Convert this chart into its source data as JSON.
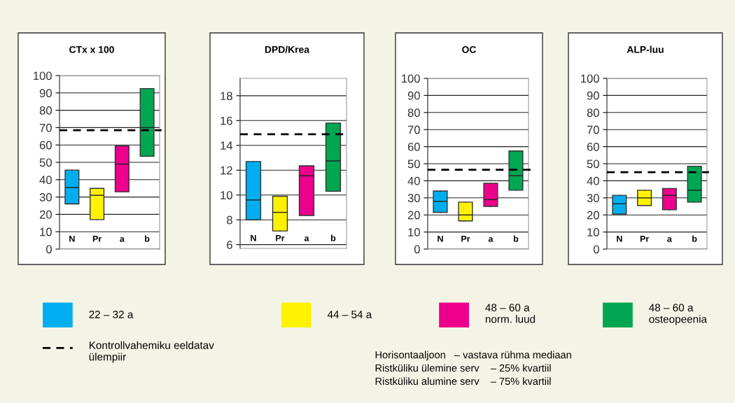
{
  "chart_data": [
    {
      "type": "box",
      "title": "CTx x 100",
      "categories": [
        "N",
        "Pr",
        "a",
        "b"
      ],
      "ylim": [
        0,
        100
      ],
      "yticks": [
        0,
        10,
        20,
        30,
        40,
        50,
        60,
        70,
        80,
        90,
        100
      ],
      "grid": "y",
      "legend": "bottom",
      "series": [
        {
          "name": "22 – 32 a",
          "color": "#00aeef",
          "boxes": [
            {
              "low": 26,
              "q1": 26,
              "median": 35.5,
              "q3": 45.5,
              "high": 45.5
            },
            null,
            null,
            null
          ]
        },
        {
          "name": "44 – 54 a",
          "color": "#fff200",
          "boxes": [
            null,
            {
              "low": 17,
              "q1": 17,
              "median": 31,
              "q3": 35,
              "high": 35
            },
            null,
            null
          ]
        },
        {
          "name": "48 – 60 a\nnorm. luud",
          "color": "#ec008c",
          "boxes": [
            null,
            null,
            {
              "low": 33,
              "q1": 33,
              "median": 49,
              "q3": 59.5,
              "high": 59.5
            },
            null
          ]
        },
        {
          "name": "48 – 60 a\nosteopeenia",
          "color": "#00a651",
          "boxes": [
            null,
            null,
            null,
            {
              "low": 53.5,
              "q1": 53.5,
              "median": 70,
              "q3": 92.5,
              "high": 92.5
            }
          ]
        }
      ],
      "ref_lines": [
        {
          "axis": "y",
          "value": 68.5,
          "label": "Kontrollvahemiku eeldatav\nülempiir",
          "color": "#000000",
          "line_style": "dashed"
        }
      ],
      "annotations": [
        "Horisontaaljoon   – vastava rühma mediaan\nRistküliku ülemine serv    – 25% kvartiil\nRistküliku alumine serv    – 75% kvartiil"
      ]
    },
    {
      "type": "box",
      "title": "DPD/Krea",
      "categories": [
        "N",
        "Pr",
        "a",
        "b"
      ],
      "ylim": [
        5.7,
        19.4
      ],
      "yticks": [
        6,
        8,
        10,
        12,
        14,
        16,
        18
      ],
      "grid": "y",
      "series": [
        {
          "color": "#00aeef",
          "boxes": [
            {
              "low": 8,
              "q1": 8,
              "median": 9.6,
              "q3": 12.7,
              "high": 12.7
            },
            null,
            null,
            null
          ]
        },
        {
          "color": "#fff200",
          "boxes": [
            null,
            {
              "low": 7.1,
              "q1": 7.1,
              "median": 8.6,
              "q3": 9.9,
              "high": 9.9
            },
            null,
            null
          ]
        },
        {
          "color": "#ec008c",
          "boxes": [
            null,
            null,
            {
              "low": 8.35,
              "q1": 8.35,
              "median": 11.55,
              "q3": 12.35,
              "high": 12.35
            },
            null
          ]
        },
        {
          "color": "#00a651",
          "boxes": [
            null,
            null,
            null,
            {
              "low": 10.3,
              "q1": 10.3,
              "median": 12.75,
              "q3": 15.8,
              "high": 15.8
            }
          ]
        }
      ],
      "ref_lines": [
        {
          "axis": "y",
          "value": 14.9,
          "color": "#000000",
          "line_style": "dashed"
        }
      ]
    },
    {
      "type": "box",
      "title": "OC",
      "categories": [
        "N",
        "Pr",
        "a",
        "b"
      ],
      "ylim": [
        0,
        100
      ],
      "yticks": [
        0,
        10,
        20,
        30,
        40,
        50,
        60,
        70,
        80,
        90,
        100
      ],
      "grid": "y",
      "series": [
        {
          "color": "#00aeef",
          "boxes": [
            {
              "low": 21.5,
              "q1": 21.5,
              "median": 28,
              "q3": 34,
              "high": 34
            },
            null,
            null,
            null
          ]
        },
        {
          "color": "#fff200",
          "boxes": [
            null,
            {
              "low": 16.5,
              "q1": 16.5,
              "median": 20,
              "q3": 27.5,
              "high": 27.5
            },
            null,
            null
          ]
        },
        {
          "color": "#ec008c",
          "boxes": [
            null,
            null,
            {
              "low": 25,
              "q1": 25,
              "median": 29,
              "q3": 38.5,
              "high": 38.5
            },
            null
          ]
        },
        {
          "color": "#00a651",
          "boxes": [
            null,
            null,
            null,
            {
              "low": 34.5,
              "q1": 34.5,
              "median": 43,
              "q3": 57.5,
              "high": 57.5
            }
          ]
        }
      ],
      "ref_lines": [
        {
          "axis": "y",
          "value": 46.5,
          "color": "#000000",
          "line_style": "dashed"
        }
      ]
    },
    {
      "type": "box",
      "title": "ALP-luu",
      "categories": [
        "N",
        "Pr",
        "a",
        "b"
      ],
      "ylim": [
        0,
        100
      ],
      "yticks": [
        0,
        10,
        20,
        30,
        40,
        50,
        60,
        70,
        80,
        90,
        100
      ],
      "grid": "y",
      "series": [
        {
          "color": "#00aeef",
          "boxes": [
            {
              "low": 20.5,
              "q1": 20.5,
              "median": 26.5,
              "q3": 31.5,
              "high": 31.5
            },
            null,
            null,
            null
          ]
        },
        {
          "color": "#fff200",
          "boxes": [
            null,
            {
              "low": 25.5,
              "q1": 25.5,
              "median": 30,
              "q3": 34.5,
              "high": 34.5
            },
            null,
            null
          ]
        },
        {
          "color": "#ec008c",
          "boxes": [
            null,
            null,
            {
              "low": 23,
              "q1": 23,
              "median": 31.5,
              "q3": 35.5,
              "high": 35.5
            },
            null
          ]
        },
        {
          "color": "#00a651",
          "boxes": [
            null,
            null,
            null,
            {
              "low": 27.5,
              "q1": 27.5,
              "median": 34.5,
              "q3": 48.5,
              "high": 48.5
            }
          ]
        }
      ],
      "ref_lines": [
        {
          "axis": "y",
          "value": 45,
          "color": "#000000",
          "line_style": "dashed"
        }
      ]
    }
  ]
}
